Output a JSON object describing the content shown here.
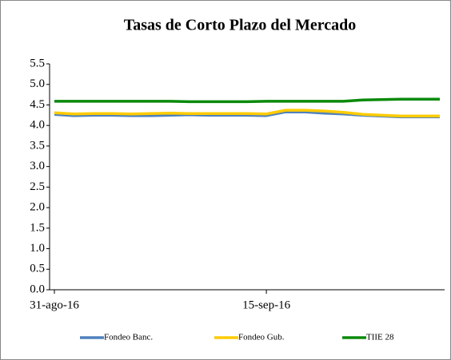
{
  "chart_data": {
    "type": "line",
    "title": "Tasas de Corto Plazo del Mercado",
    "categories": [
      "31-ago-16",
      null,
      null,
      null,
      null,
      null,
      null,
      null,
      null,
      null,
      null,
      "15-sep-16",
      null,
      null,
      null,
      null,
      null,
      null,
      null,
      null,
      null
    ],
    "series": [
      {
        "name": "Fondeo Banc.",
        "color": "#4f81bd",
        "values": [
          4.27,
          4.24,
          4.25,
          4.25,
          4.24,
          4.24,
          4.25,
          4.26,
          4.25,
          4.25,
          4.25,
          4.24,
          4.33,
          4.33,
          4.3,
          4.28,
          4.25,
          4.23,
          4.21,
          4.21,
          4.21
        ]
      },
      {
        "name": "Fondeo Gub.",
        "color": "#ffcc00",
        "values": [
          4.31,
          4.28,
          4.29,
          4.29,
          4.28,
          4.29,
          4.3,
          4.29,
          4.29,
          4.29,
          4.29,
          4.28,
          4.37,
          4.37,
          4.35,
          4.32,
          4.27,
          4.25,
          4.23,
          4.23,
          4.23
        ]
      },
      {
        "name": "TIIE 28",
        "color": "#0a8a0a",
        "values": [
          4.59,
          4.59,
          4.59,
          4.59,
          4.59,
          4.59,
          4.59,
          4.58,
          4.58,
          4.58,
          4.58,
          4.59,
          4.59,
          4.59,
          4.59,
          4.59,
          4.62,
          4.63,
          4.64,
          4.64,
          4.64
        ]
      }
    ],
    "ylim": [
      0,
      5.5
    ],
    "yticks": [
      {
        "value": 0,
        "label": "0.0"
      },
      0.5,
      {
        "value": 1,
        "label": "1.0"
      },
      1.5,
      {
        "value": 2,
        "label": "2.0"
      },
      2.5,
      {
        "value": 3,
        "label": "3.0"
      },
      3.5,
      {
        "value": 4,
        "label": "4.0"
      },
      4.5,
      {
        "value": 5,
        "label": "5.0"
      },
      5.5
    ],
    "legend": "bottom"
  }
}
